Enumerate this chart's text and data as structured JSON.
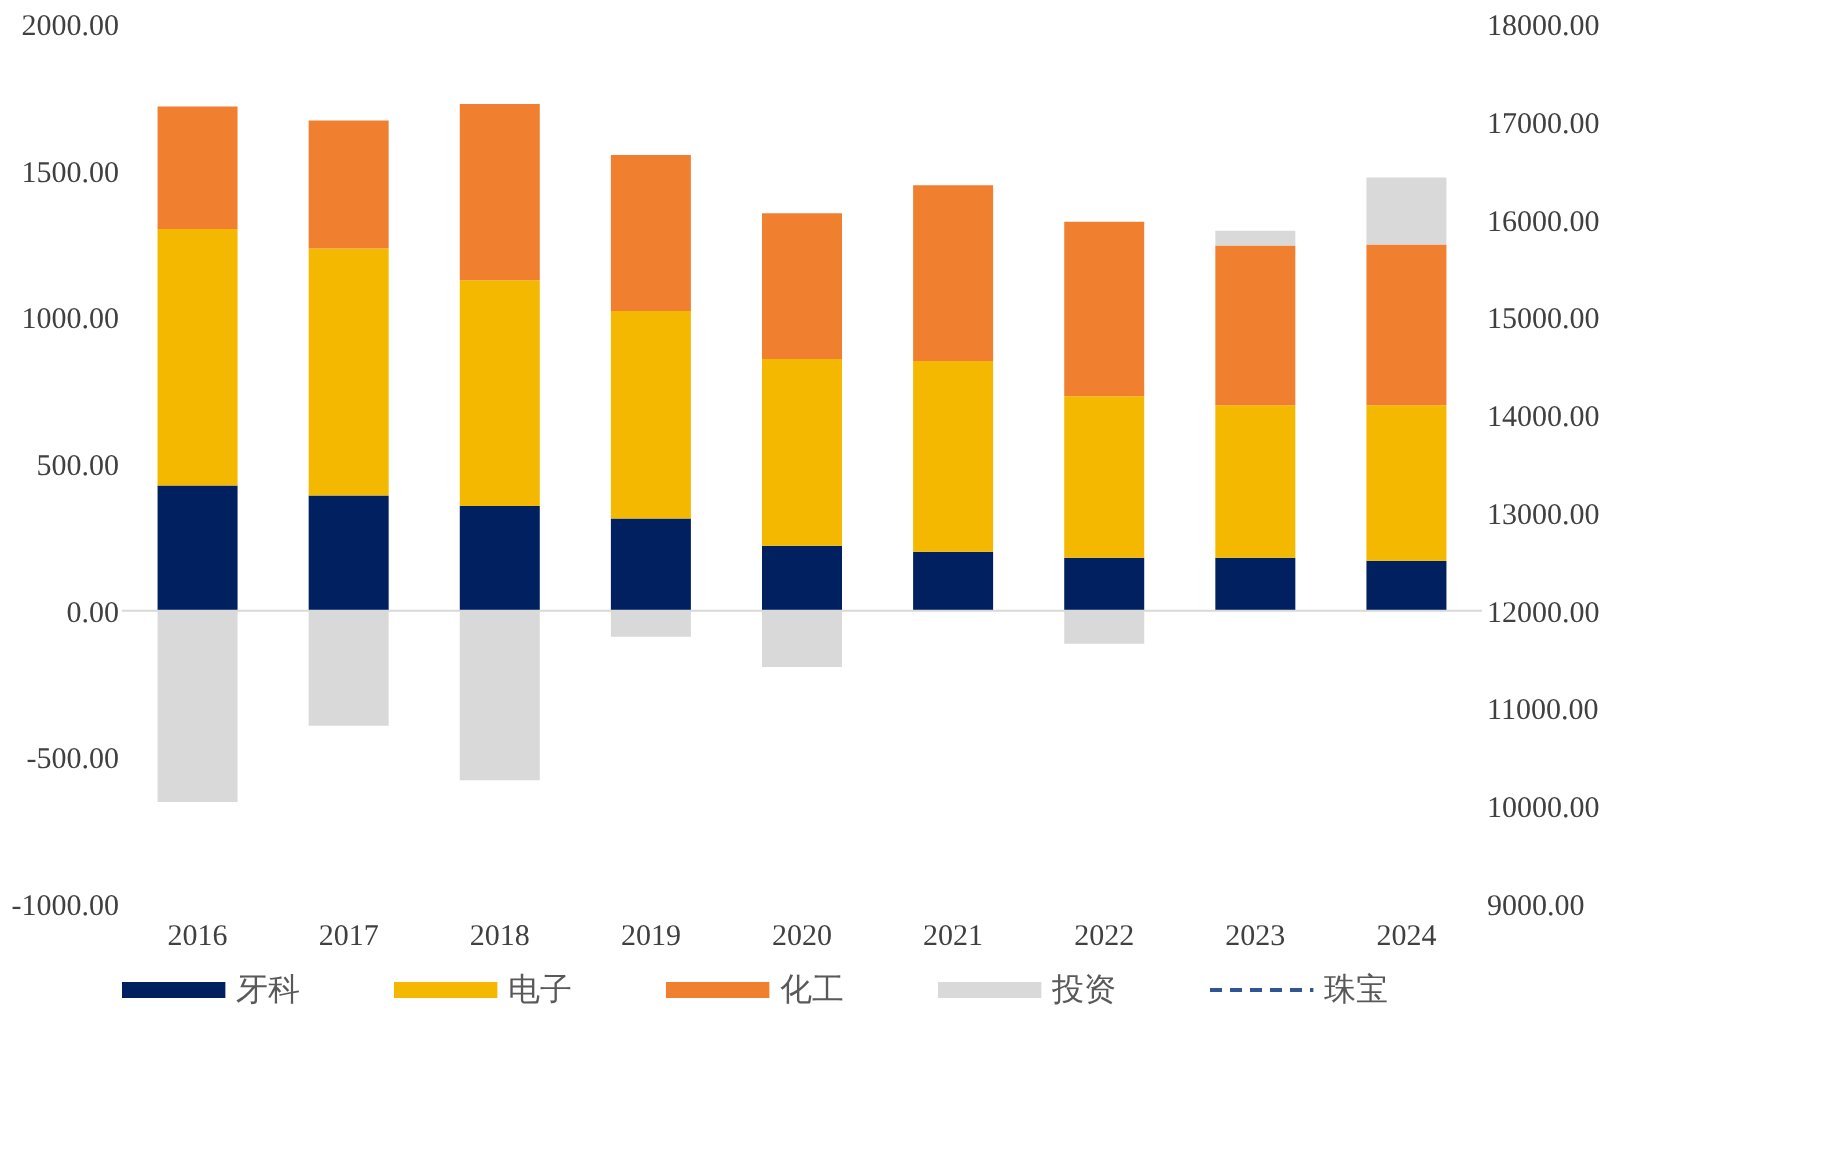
{
  "chart_data": {
    "type": "bar",
    "stacked": true,
    "categories": [
      "2016",
      "2017",
      "2018",
      "2019",
      "2020",
      "2021",
      "2022",
      "2023",
      "2024"
    ],
    "series": [
      {
        "name": "牙科",
        "color": "#002060",
        "values": [
          427,
          393,
          357,
          314,
          221,
          201,
          180,
          180,
          170
        ]
      },
      {
        "name": "电子",
        "color": "#f5b800",
        "values": [
          874,
          842,
          769,
          708,
          637,
          650,
          551,
          520,
          530
        ]
      },
      {
        "name": "化工",
        "color": "#f08030",
        "values": [
          418,
          436,
          601,
          531,
          497,
          599,
          595,
          545,
          548
        ]
      },
      {
        "name": "投资",
        "color": "#d9d9d9",
        "values": [
          -652,
          -392,
          -578,
          -89,
          -192,
          null,
          -113,
          50,
          229
        ]
      },
      {
        "name": "珠宝",
        "type": "line",
        "axis": "y2",
        "line_style": "dashed",
        "color": "#2f5597",
        "values": [
          null,
          null,
          null,
          null,
          null,
          null,
          null,
          null,
          null
        ]
      }
    ],
    "ylim": [
      -1000,
      2000
    ],
    "yticks": [
      {
        "value": -1000,
        "label": "-1000.00"
      },
      {
        "value": -500,
        "label": "-500.00"
      },
      {
        "value": 0,
        "label": "0.00"
      },
      {
        "value": 500,
        "label": "500.00"
      },
      {
        "value": 1000,
        "label": "1000.00"
      },
      {
        "value": 1500,
        "label": "1500.00"
      },
      {
        "value": 2000,
        "label": "2000.00"
      }
    ],
    "y2lim": [
      9000,
      18000
    ],
    "y2ticks": [
      {
        "value": 9000,
        "label": "9000.00"
      },
      {
        "value": 10000,
        "label": "10000.00"
      },
      {
        "value": 11000,
        "label": "11000.00"
      },
      {
        "value": 12000,
        "label": "12000.00"
      },
      {
        "value": 13000,
        "label": "13000.00"
      },
      {
        "value": 14000,
        "label": "14000.00"
      },
      {
        "value": 15000,
        "label": "15000.00"
      },
      {
        "value": 16000,
        "label": "16000.00"
      },
      {
        "value": 17000,
        "label": "17000.00"
      },
      {
        "value": 18000,
        "label": "18000.00"
      }
    ],
    "ref_lines": [
      {
        "axis": "y",
        "value": 0,
        "color": "#d9d9d9"
      }
    ],
    "grid": false,
    "legend": "bottom"
  }
}
